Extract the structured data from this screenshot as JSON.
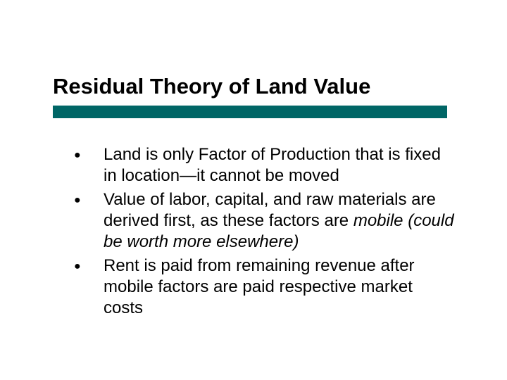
{
  "slide": {
    "title": "Residual Theory of Land Value",
    "title_fontsize": 31,
    "title_color": "#000000",
    "underline_color": "#006666",
    "underline_width": 560,
    "underline_height": 18,
    "body_fontsize": 24,
    "body_color": "#000000",
    "bullets": [
      {
        "plain": "Land is only Factor of Production that is fixed in location—it cannot be moved",
        "italic": ""
      },
      {
        "plain": "Value of labor, capital, and raw materials are derived first, as these factors are ",
        "italic": "mobile (could be worth more elsewhere)"
      },
      {
        "plain": "Rent is paid from remaining revenue after mobile factors are paid respective market costs",
        "italic": ""
      }
    ],
    "background_color": "#ffffff"
  }
}
